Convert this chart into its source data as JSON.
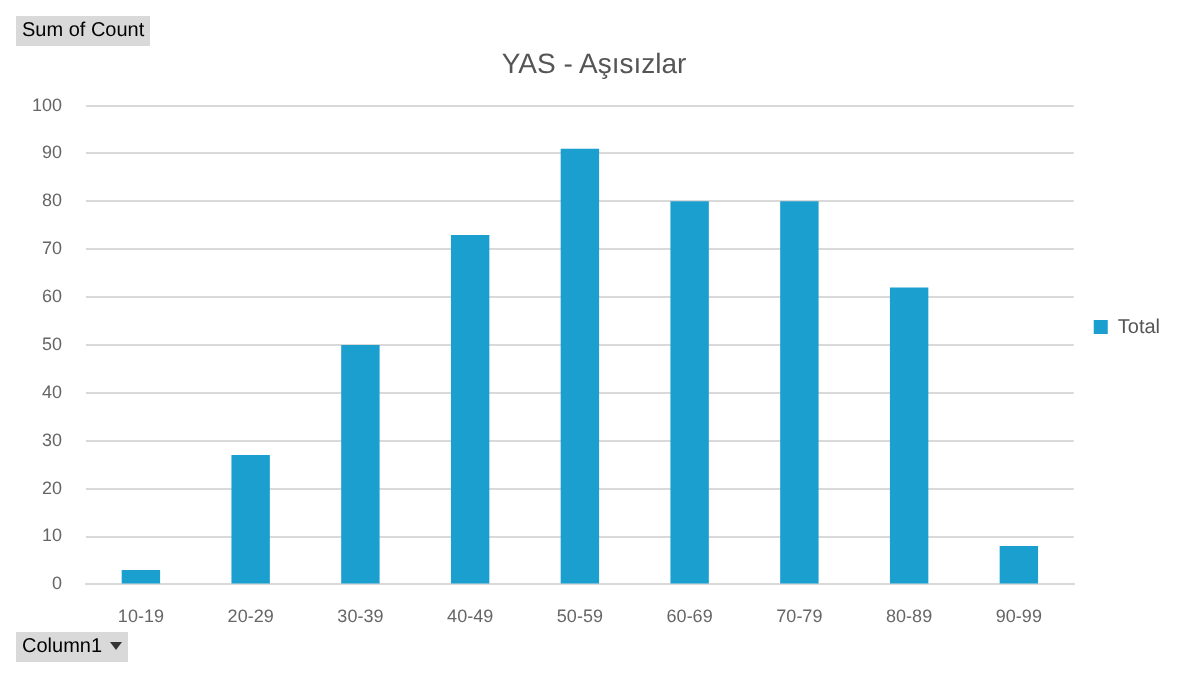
{
  "chart_data": {
    "type": "bar",
    "title": "YAS - Aşısızlar",
    "categories": [
      "10-19",
      "20-29",
      "30-39",
      "40-49",
      "50-59",
      "60-69",
      "70-79",
      "80-89",
      "90-99"
    ],
    "series": [
      {
        "name": "Total",
        "color": "#1a9fcf",
        "values": [
          3,
          27,
          50,
          73,
          91,
          80,
          80,
          62,
          8
        ]
      }
    ],
    "ylim": [
      0,
      100
    ],
    "yticks": [
      0,
      10,
      20,
      30,
      40,
      50,
      60,
      70,
      80,
      90,
      100
    ],
    "grid": "y",
    "legend": "right",
    "annotations": [
      "Sum of Count",
      "Column1"
    ]
  }
}
